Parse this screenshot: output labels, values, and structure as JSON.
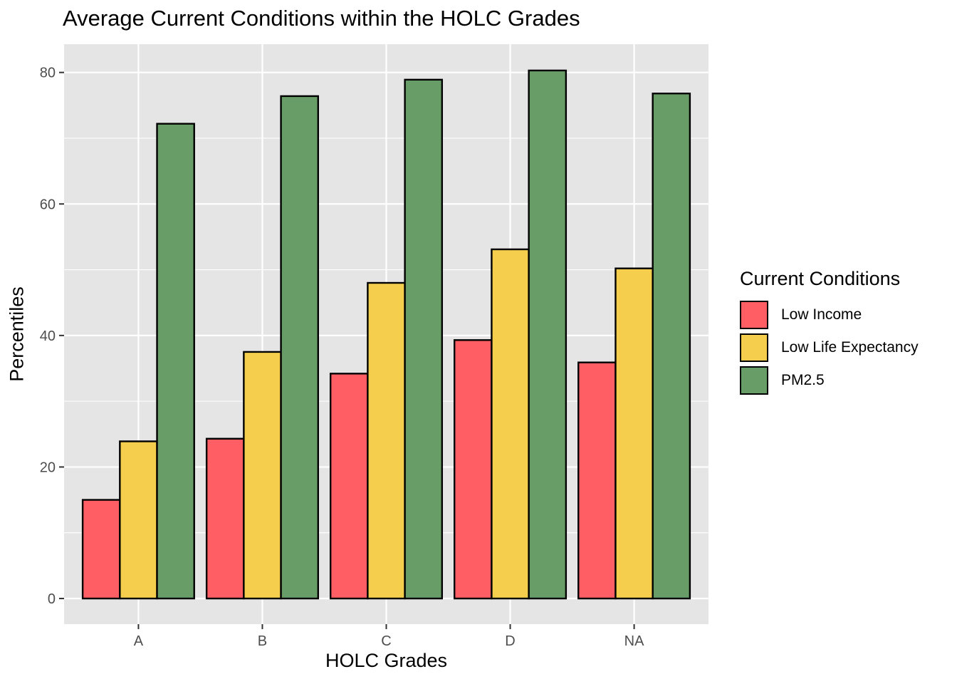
{
  "chart_data": {
    "type": "bar",
    "title": "Average Current Conditions within the HOLC Grades",
    "xlabel": "HOLC Grades",
    "ylabel": "Percentiles",
    "categories": [
      "A",
      "B",
      "C",
      "D",
      "NA"
    ],
    "series": [
      {
        "name": "Low Income",
        "color": "#FF5F64",
        "values": [
          15.0,
          24.3,
          34.2,
          39.3,
          35.9
        ]
      },
      {
        "name": "Low Life Expectancy",
        "color": "#F5CE4D",
        "values": [
          23.9,
          37.5,
          48.0,
          53.1,
          50.2
        ]
      },
      {
        "name": "PM2.5",
        "color": "#699D68",
        "values": [
          72.2,
          76.4,
          78.9,
          80.3,
          76.8
        ]
      }
    ],
    "ylim": [
      -3.9,
      84.3
    ],
    "yticks": [
      0,
      20,
      40,
      60,
      80
    ],
    "legend": {
      "title": "Current Conditions",
      "position": "right"
    },
    "grid": true,
    "panel_background": "#E5E5E5",
    "grid_color": "#FFFFFF"
  }
}
